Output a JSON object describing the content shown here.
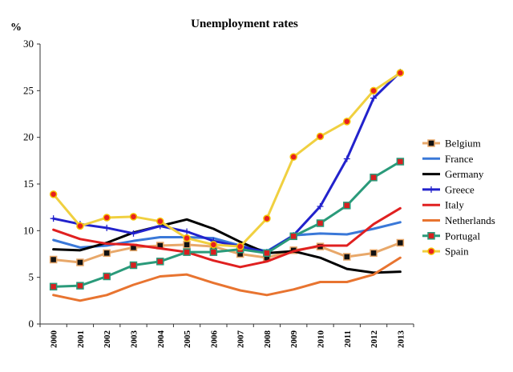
{
  "chart_data": {
    "type": "line",
    "title": "Unemployment rates",
    "ylabel": "%",
    "xlabel": "",
    "ylim": [
      0,
      30
    ],
    "yticks": [
      0,
      5,
      10,
      15,
      20,
      25,
      30
    ],
    "grid": "none",
    "legend": "right",
    "categories": [
      "2000",
      "2001",
      "2002",
      "2003",
      "2004",
      "2005",
      "2006",
      "2007",
      "2008",
      "2009",
      "2010",
      "2011",
      "2012",
      "2013"
    ],
    "series": [
      {
        "name": "Belgium",
        "color": "#e8a86a",
        "marker": "square-black",
        "values": [
          6.9,
          6.6,
          7.6,
          8.2,
          8.4,
          8.5,
          8.3,
          7.5,
          7.1,
          7.9,
          8.3,
          7.2,
          7.6,
          8.7
        ]
      },
      {
        "name": "France",
        "color": "#3a78d8",
        "marker": "none",
        "values": [
          9.0,
          8.2,
          8.4,
          8.9,
          9.3,
          9.3,
          9.2,
          8.4,
          7.8,
          9.5,
          9.7,
          9.6,
          10.2,
          10.9
        ]
      },
      {
        "name": "Germany",
        "color": "#000000",
        "marker": "none",
        "values": [
          8.0,
          7.9,
          8.7,
          9.8,
          10.5,
          11.2,
          10.2,
          8.8,
          7.6,
          7.8,
          7.1,
          5.9,
          5.5,
          5.6
        ]
      },
      {
        "name": "Greece",
        "color": "#2222cc",
        "marker": "plus",
        "values": [
          11.3,
          10.7,
          10.3,
          9.7,
          10.5,
          9.9,
          8.9,
          8.3,
          7.7,
          9.5,
          12.6,
          17.7,
          24.2,
          27.0
        ]
      },
      {
        "name": "Italy",
        "color": "#e02020",
        "marker": "none",
        "values": [
          10.1,
          9.1,
          8.6,
          8.5,
          8.1,
          7.7,
          6.8,
          6.1,
          6.7,
          7.8,
          8.4,
          8.4,
          10.7,
          12.4
        ]
      },
      {
        "name": "Netherlands",
        "color": "#e87430",
        "marker": "none",
        "values": [
          3.1,
          2.5,
          3.1,
          4.2,
          5.1,
          5.3,
          4.4,
          3.6,
          3.1,
          3.7,
          4.5,
          4.5,
          5.3,
          7.1
        ]
      },
      {
        "name": "Portugal",
        "color": "#2a9a7a",
        "marker": "square-red",
        "values": [
          4.0,
          4.1,
          5.1,
          6.3,
          6.7,
          7.7,
          7.7,
          8.0,
          7.6,
          9.4,
          10.8,
          12.7,
          15.7,
          17.4
        ]
      },
      {
        "name": "Spain",
        "color": "#f0d040",
        "marker": "circle-red",
        "values": [
          13.9,
          10.5,
          11.4,
          11.5,
          11.0,
          9.2,
          8.5,
          8.3,
          11.3,
          17.9,
          20.1,
          21.7,
          25.0,
          26.9
        ]
      }
    ]
  }
}
